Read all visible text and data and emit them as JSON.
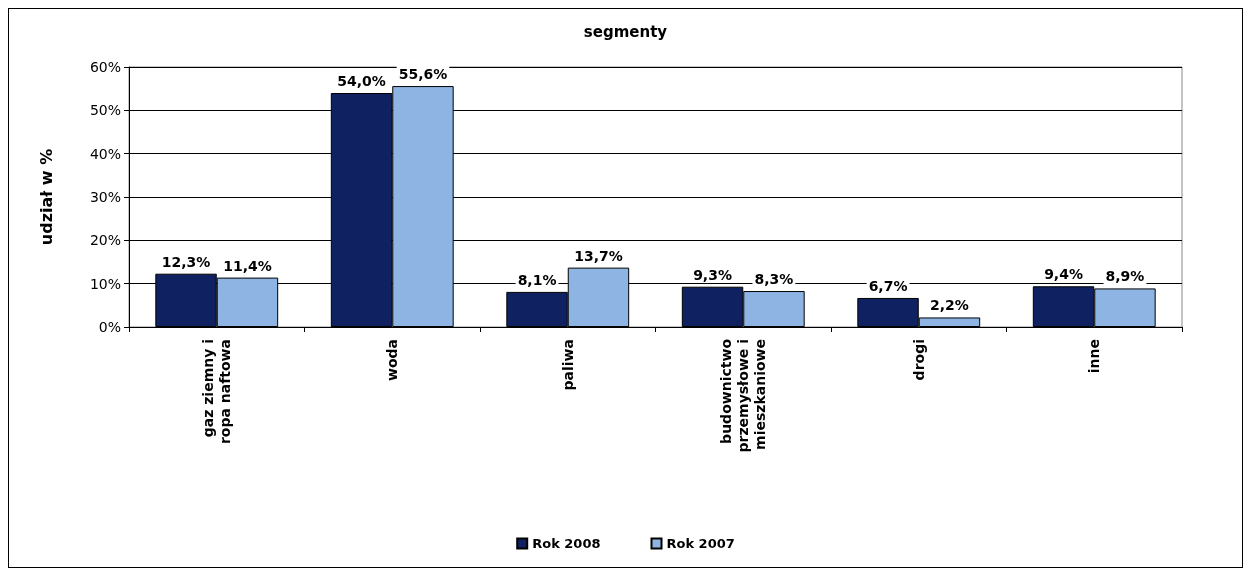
{
  "chart_data": {
    "type": "bar",
    "title": "segmenty",
    "ylabel": "udział w %",
    "categories": [
      "gaz ziemny i\nropa naftowa",
      "woda",
      "paliwa",
      "budownictwo\nprzemysłowe i\nmieszkaniowe",
      "drogi",
      "inne"
    ],
    "series": [
      {
        "name": "Rok 2008",
        "color": "#0f2160",
        "values": [
          12.3,
          54.0,
          8.1,
          9.3,
          6.7,
          9.4
        ],
        "value_labels": [
          "12,3%",
          "54,0%",
          "8,1%",
          "9,3%",
          "6,7%",
          "9,4%"
        ]
      },
      {
        "name": "Rok 2007",
        "color": "#8eb4e3",
        "values": [
          11.4,
          55.6,
          13.7,
          8.3,
          2.2,
          8.9
        ],
        "value_labels": [
          "11,4%",
          "55,6%",
          "13,7%",
          "8,3%",
          "2,2%",
          "8,9%"
        ]
      }
    ],
    "ylim": [
      0,
      60
    ],
    "yticks": [
      {
        "value": 0,
        "label": "0%"
      },
      {
        "value": 10,
        "label": "10%"
      },
      {
        "value": 20,
        "label": "20%"
      },
      {
        "value": 30,
        "label": "30%"
      },
      {
        "value": 40,
        "label": "40%"
      },
      {
        "value": 50,
        "label": "50%"
      },
      {
        "value": 60,
        "label": "60%"
      }
    ],
    "grid": "y",
    "legend": "bottom"
  }
}
